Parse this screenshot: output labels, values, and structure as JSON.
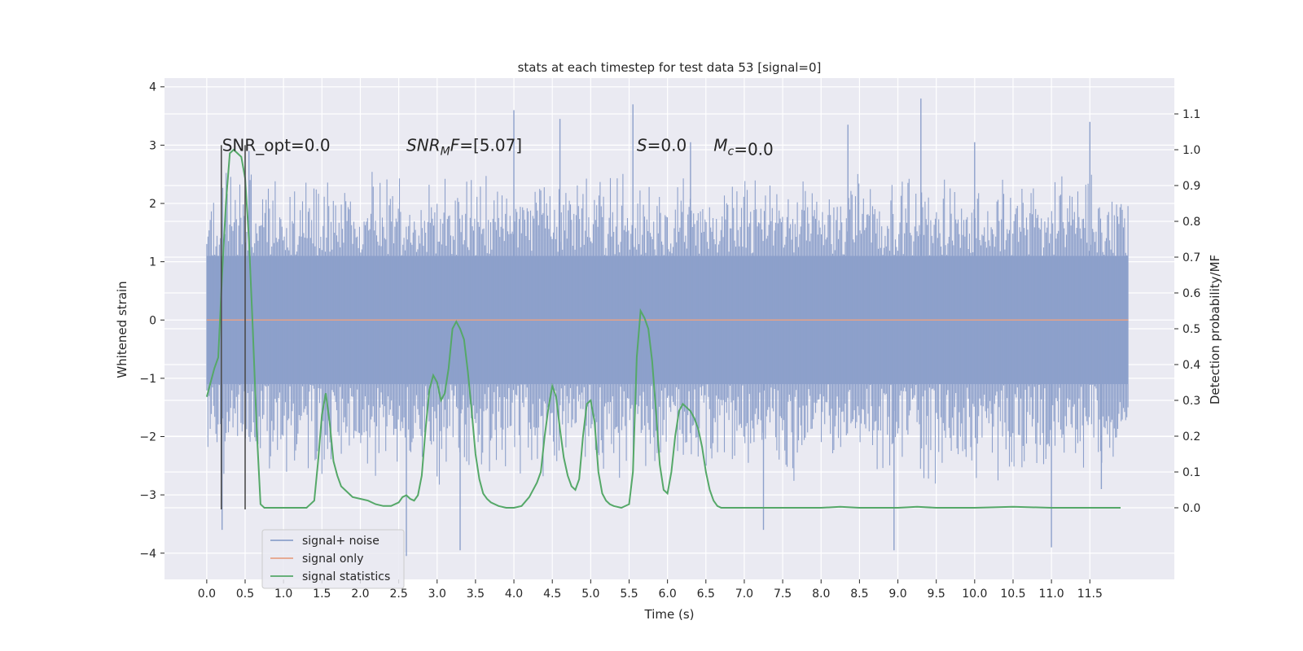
{
  "chart_data": {
    "type": "line",
    "title": "stats at each timestep for test data 53 [signal=0]",
    "xlabel": "Time (s)",
    "ylabel": "Whitened strain",
    "y2label": "Detection probability/MF",
    "xlim": [
      -0.55,
      12.6
    ],
    "ylim": [
      -4.45,
      4.15
    ],
    "y2lim": [
      -0.2,
      1.2
    ],
    "x_ticks": [
      0.0,
      0.5,
      1.0,
      1.5,
      2.0,
      2.5,
      3.0,
      3.5,
      4.0,
      4.5,
      5.0,
      5.5,
      6.0,
      6.5,
      7.0,
      7.5,
      8.0,
      8.5,
      9.0,
      9.5,
      10.0,
      10.5,
      11.0,
      11.5
    ],
    "x_tick_labels": [
      "0.0",
      "0.5",
      "1.0",
      "1.5",
      "2.0",
      "2.5",
      "3.0",
      "3.5",
      "4.0",
      "4.5",
      "5.0",
      "5.5",
      "6.0",
      "6.5",
      "7.0",
      "7.5",
      "8.0",
      "8.5",
      "9.0",
      "9.5",
      "10.0",
      "10.5",
      "11.0",
      "11.5"
    ],
    "y_ticks": [
      -4,
      -3,
      -2,
      -1,
      0,
      1,
      2,
      3,
      4
    ],
    "y_tick_labels": [
      "−4",
      "−3",
      "−2",
      "−1",
      "0",
      "1",
      "2",
      "3",
      "4"
    ],
    "y2_ticks": [
      0.0,
      0.1,
      0.2,
      0.3,
      0.4,
      0.5,
      0.6,
      0.7,
      0.8,
      0.9,
      1.0,
      1.1
    ],
    "y2_tick_labels": [
      "0.0",
      "0.1",
      "0.2",
      "0.3",
      "0.4",
      "0.5",
      "0.6",
      "0.7",
      "0.8",
      "0.9",
      "1.0",
      "1.1"
    ],
    "grid": true,
    "legend_position": "lower-left",
    "annotations": [
      {
        "text": "SNR_opt=0.0",
        "x": 0.2,
        "y": 3.0
      },
      {
        "text": "SNR_MF=[5.07]",
        "x": 2.6,
        "y": 3.0
      },
      {
        "text": "S=0.0",
        "x": 5.6,
        "y": 3.0
      },
      {
        "text": "M_c=0.0",
        "x": 6.6,
        "y": 3.0
      }
    ],
    "vlines": {
      "x": [
        0.19,
        0.5
      ],
      "y_range": [
        -3.25,
        3.0
      ],
      "color": "#4d4d4d"
    },
    "series": [
      {
        "name": "signal+ noise",
        "color": "#8da0cb",
        "axis": "left",
        "kind": "noise",
        "x_range": [
          0.0,
          12.0
        ],
        "envelope_core": 1.1,
        "envelope_outer": [
          -2.5,
          2.3
        ],
        "extremes": [
          {
            "x": 0.2,
            "y": -3.6
          },
          {
            "x": 0.55,
            "y": 2.9
          },
          {
            "x": 2.6,
            "y": -4.05
          },
          {
            "x": 3.3,
            "y": -3.95
          },
          {
            "x": 4.0,
            "y": 3.6
          },
          {
            "x": 4.6,
            "y": 3.45
          },
          {
            "x": 5.55,
            "y": 3.7
          },
          {
            "x": 6.3,
            "y": 3.05
          },
          {
            "x": 7.25,
            "y": -3.6
          },
          {
            "x": 8.35,
            "y": 3.35
          },
          {
            "x": 8.95,
            "y": -3.95
          },
          {
            "x": 9.3,
            "y": 3.8
          },
          {
            "x": 10.0,
            "y": 3.05
          },
          {
            "x": 11.0,
            "y": -3.9
          },
          {
            "x": 11.5,
            "y": 3.4
          },
          {
            "x": 11.65,
            "y": -2.9
          }
        ]
      },
      {
        "name": "signal only",
        "color": "#e5a287",
        "axis": "left",
        "x": [
          0.0,
          12.0
        ],
        "values": [
          0.0,
          0.0
        ]
      },
      {
        "name": "signal statistics",
        "color": "#55a868",
        "axis": "right",
        "x": [
          0.0,
          0.05,
          0.1,
          0.15,
          0.2,
          0.25,
          0.3,
          0.35,
          0.4,
          0.45,
          0.5,
          0.55,
          0.6,
          0.65,
          0.7,
          0.75,
          0.8,
          0.9,
          1.0,
          1.1,
          1.2,
          1.3,
          1.4,
          1.45,
          1.5,
          1.55,
          1.6,
          1.65,
          1.7,
          1.75,
          1.8,
          1.9,
          2.0,
          2.1,
          2.2,
          2.3,
          2.4,
          2.5,
          2.55,
          2.6,
          2.65,
          2.7,
          2.75,
          2.8,
          2.85,
          2.9,
          2.95,
          3.0,
          3.05,
          3.1,
          3.15,
          3.2,
          3.25,
          3.3,
          3.35,
          3.4,
          3.45,
          3.5,
          3.55,
          3.6,
          3.65,
          3.7,
          3.8,
          3.9,
          4.0,
          4.1,
          4.2,
          4.3,
          4.35,
          4.4,
          4.45,
          4.5,
          4.55,
          4.6,
          4.65,
          4.7,
          4.75,
          4.8,
          4.85,
          4.9,
          4.95,
          5.0,
          5.05,
          5.1,
          5.15,
          5.2,
          5.25,
          5.3,
          5.4,
          5.5,
          5.55,
          5.6,
          5.65,
          5.7,
          5.75,
          5.8,
          5.85,
          5.9,
          5.95,
          6.0,
          6.05,
          6.1,
          6.15,
          6.2,
          6.25,
          6.3,
          6.35,
          6.4,
          6.45,
          6.5,
          6.55,
          6.6,
          6.65,
          6.7,
          6.75,
          6.8,
          6.9,
          7.0,
          7.5,
          8.0,
          8.25,
          8.5,
          9.0,
          9.25,
          9.5,
          10.0,
          10.5,
          11.0,
          11.5,
          11.9
        ],
        "values": [
          0.31,
          0.35,
          0.39,
          0.42,
          0.65,
          0.85,
          0.99,
          1.0,
          0.99,
          0.98,
          0.92,
          0.75,
          0.5,
          0.22,
          0.01,
          0.0,
          0.0,
          0.0,
          0.0,
          0.0,
          0.0,
          0.0,
          0.02,
          0.13,
          0.26,
          0.32,
          0.24,
          0.13,
          0.09,
          0.06,
          0.05,
          0.03,
          0.025,
          0.02,
          0.01,
          0.005,
          0.005,
          0.015,
          0.03,
          0.035,
          0.025,
          0.02,
          0.035,
          0.09,
          0.22,
          0.33,
          0.37,
          0.35,
          0.3,
          0.32,
          0.39,
          0.5,
          0.52,
          0.5,
          0.47,
          0.38,
          0.27,
          0.15,
          0.08,
          0.04,
          0.025,
          0.015,
          0.005,
          0.0,
          0.0,
          0.005,
          0.03,
          0.07,
          0.1,
          0.2,
          0.28,
          0.34,
          0.31,
          0.22,
          0.14,
          0.09,
          0.06,
          0.05,
          0.08,
          0.2,
          0.29,
          0.3,
          0.24,
          0.1,
          0.04,
          0.02,
          0.01,
          0.005,
          0.0,
          0.01,
          0.1,
          0.42,
          0.55,
          0.53,
          0.5,
          0.41,
          0.27,
          0.12,
          0.05,
          0.04,
          0.1,
          0.2,
          0.27,
          0.29,
          0.28,
          0.27,
          0.25,
          0.22,
          0.17,
          0.1,
          0.05,
          0.02,
          0.005,
          0.0,
          0.0,
          0.0,
          0.0,
          0.0,
          0.0,
          0.0,
          0.003,
          0.0,
          0.0,
          0.003,
          0.0,
          0.0,
          0.003,
          0.0,
          0.0,
          0.0
        ]
      }
    ]
  }
}
